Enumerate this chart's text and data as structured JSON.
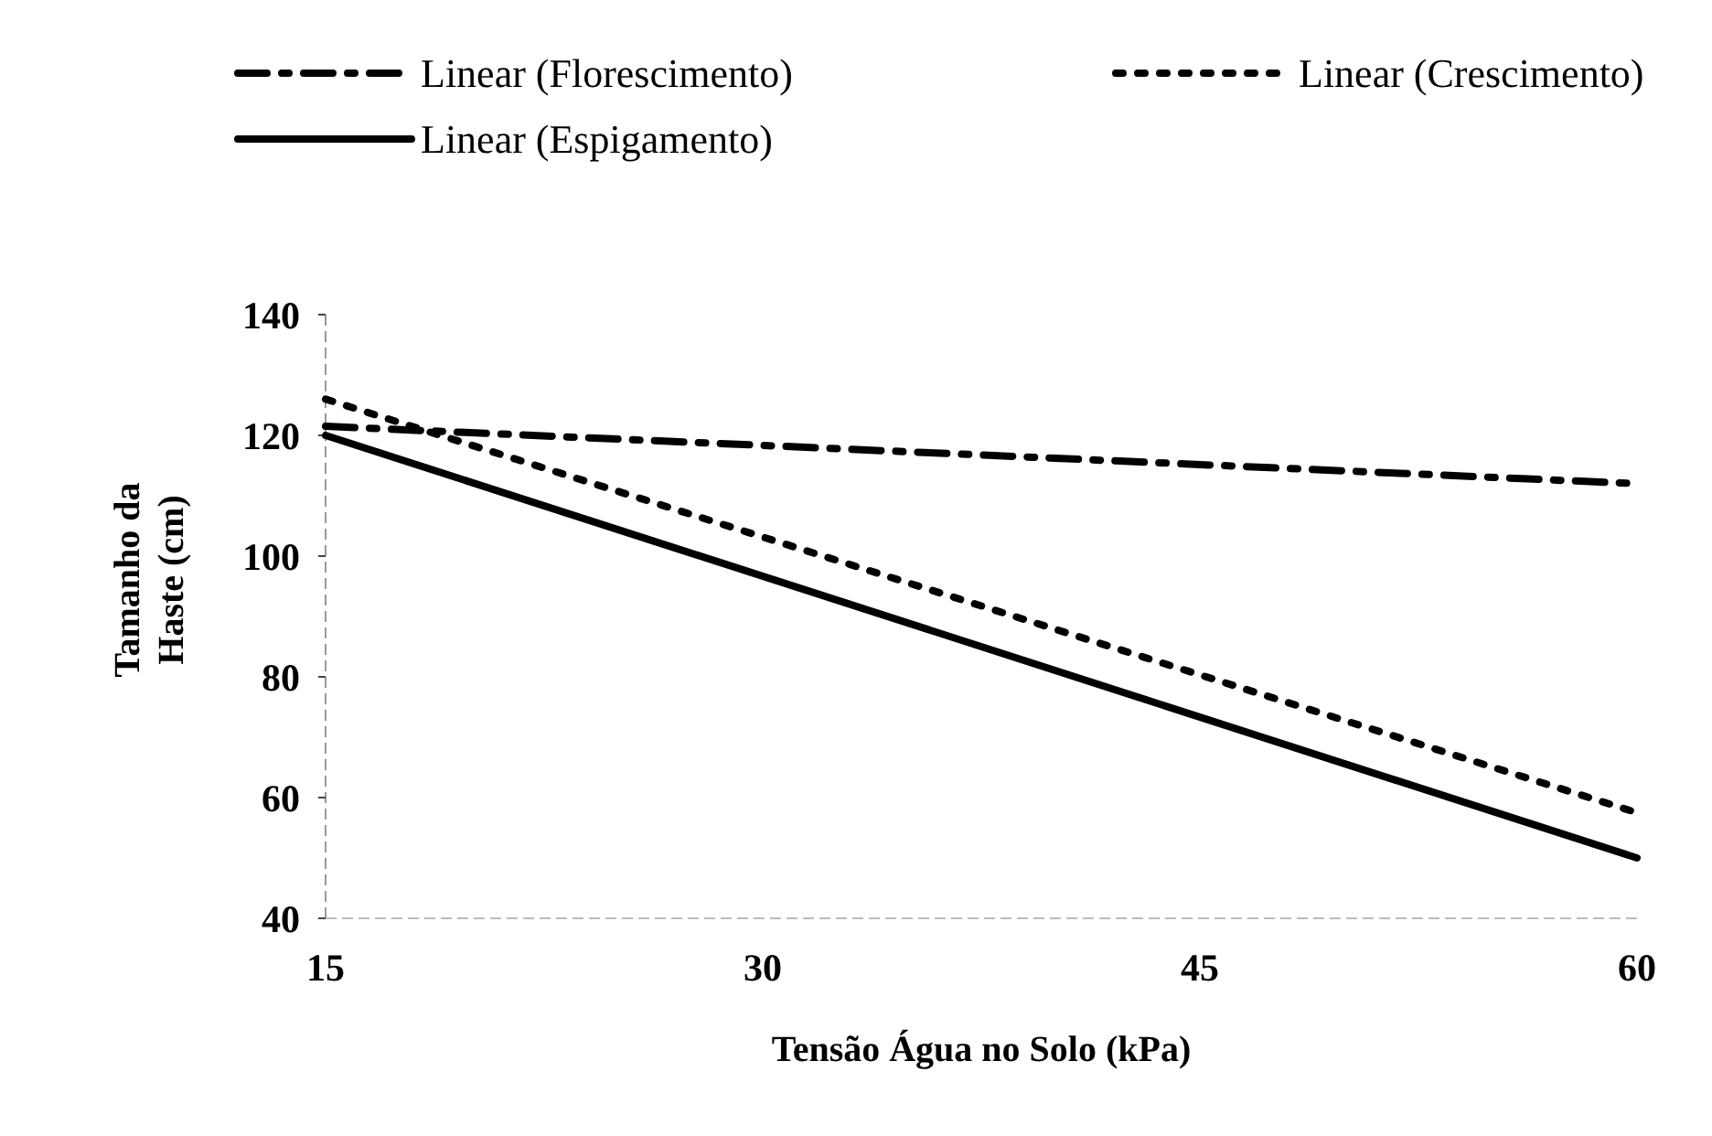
{
  "chart_data": {
    "type": "line",
    "xlabel": "Tensão Água no Solo (kPa)",
    "ylabel": "Tamanho da Haste (cm)",
    "x": [
      15,
      60
    ],
    "xlim": [
      15,
      60
    ],
    "xticks": [
      15,
      30,
      45,
      60
    ],
    "ylim": [
      40,
      140
    ],
    "yticks": [
      40,
      60,
      80,
      100,
      120,
      140
    ],
    "grid": false,
    "legend": "top",
    "marker": "none",
    "series": [
      {
        "name": "Linear (Florescimento)",
        "color": "#000000",
        "line_style": "dashed",
        "values": [
          121.5,
          112
        ]
      },
      {
        "name": "Linear (Crescimento)",
        "color": "#000000",
        "line_style": "dotted",
        "values": [
          126,
          57.5
        ]
      },
      {
        "name": "Linear (Espigamento)",
        "color": "#000000",
        "line_style": "solid",
        "values": [
          120,
          50
        ]
      }
    ]
  }
}
